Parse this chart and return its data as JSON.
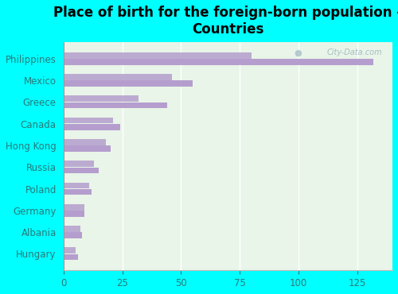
{
  "title": "Place of birth for the foreign-born population -\nCountries",
  "categories": [
    "Philippines",
    "Mexico",
    "Greece",
    "Canada",
    "Hong Kong",
    "Russia",
    "Poland",
    "Germany",
    "Albania",
    "Hungary"
  ],
  "values1": [
    132,
    55,
    44,
    24,
    20,
    15,
    12,
    9,
    8,
    6
  ],
  "values2": [
    80,
    46,
    32,
    21,
    18,
    13,
    11,
    9,
    7,
    5
  ],
  "bar_color": "#b59ece",
  "background_outer": "#00ffff",
  "background_inner": "#e8f5e8",
  "xlim": [
    0,
    140
  ],
  "xticks": [
    0,
    25,
    50,
    75,
    100,
    125
  ],
  "watermark": "City-Data.com",
  "title_fontsize": 12,
  "tick_fontsize": 8.5
}
